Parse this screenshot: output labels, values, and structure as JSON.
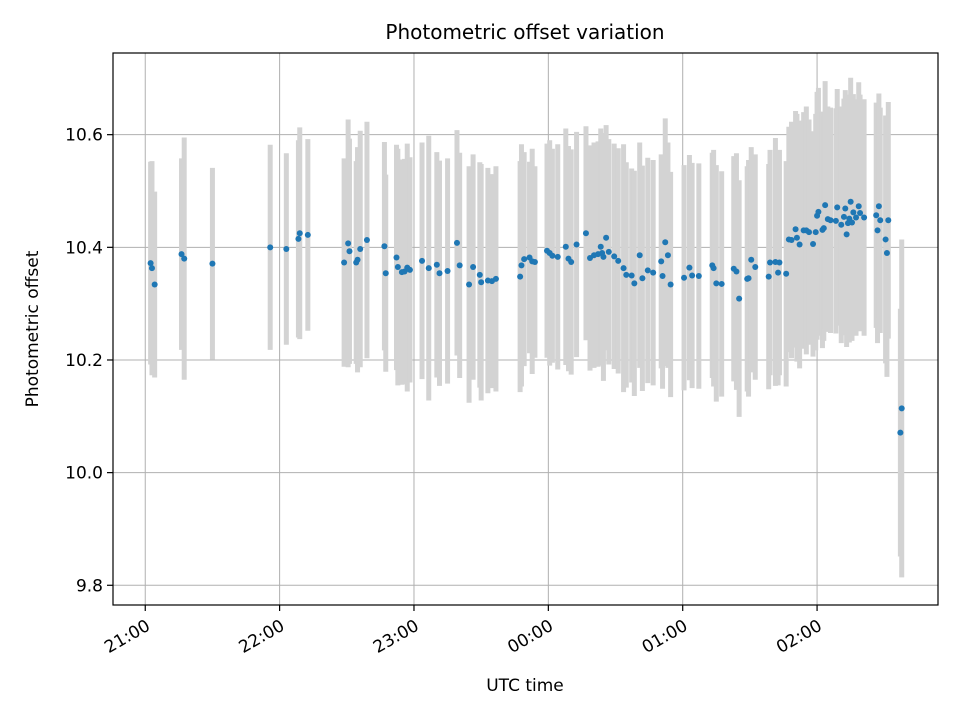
{
  "chart_data": {
    "type": "scatter",
    "title": "Photometric offset variation",
    "xlabel": "UTC time",
    "ylabel": "Photometric offset",
    "x_unit": "hours since 21:00 UTC",
    "xlim": [
      -0.24,
      5.9
    ],
    "ylim": [
      9.765,
      10.745
    ],
    "grid": true,
    "x_ticks": [
      {
        "value": 0,
        "label": "21:00"
      },
      {
        "value": 1,
        "label": "22:00"
      },
      {
        "value": 2,
        "label": "23:00"
      },
      {
        "value": 3,
        "label": "00:00"
      },
      {
        "value": 4,
        "label": "01:00"
      },
      {
        "value": 5,
        "label": "02:00"
      }
    ],
    "y_ticks": [
      {
        "value": 9.8,
        "label": "9.8"
      },
      {
        "value": 10.0,
        "label": "10.0"
      },
      {
        "value": 10.2,
        "label": "10.2"
      },
      {
        "value": 10.4,
        "label": "10.4"
      },
      {
        "value": 10.6,
        "label": "10.6"
      }
    ],
    "colors": {
      "point": "#1f77b4",
      "errorbar": "#d3d3d3",
      "grid": "#b0b0b0"
    },
    "series": [
      {
        "name": "Photometric offset",
        "points": [
          {
            "x": 0.04,
            "y": 10.372,
            "err": 0.18
          },
          {
            "x": 0.05,
            "y": 10.363,
            "err": 0.19
          },
          {
            "x": 0.07,
            "y": 10.334,
            "err": 0.165
          },
          {
            "x": 0.27,
            "y": 10.388,
            "err": 0.17
          },
          {
            "x": 0.29,
            "y": 10.38,
            "err": 0.215
          },
          {
            "x": 0.5,
            "y": 10.371,
            "err": 0.17
          },
          {
            "x": 0.93,
            "y": 10.4,
            "err": 0.182
          },
          {
            "x": 1.05,
            "y": 10.397,
            "err": 0.17
          },
          {
            "x": 1.14,
            "y": 10.415,
            "err": 0.175
          },
          {
            "x": 1.15,
            "y": 10.425,
            "err": 0.188
          },
          {
            "x": 1.21,
            "y": 10.422,
            "err": 0.17
          },
          {
            "x": 1.48,
            "y": 10.373,
            "err": 0.185
          },
          {
            "x": 1.51,
            "y": 10.407,
            "err": 0.22
          },
          {
            "x": 1.52,
            "y": 10.393,
            "err": 0.2
          },
          {
            "x": 1.57,
            "y": 10.373,
            "err": 0.18
          },
          {
            "x": 1.58,
            "y": 10.378,
            "err": 0.2
          },
          {
            "x": 1.6,
            "y": 10.397,
            "err": 0.21
          },
          {
            "x": 1.65,
            "y": 10.413,
            "err": 0.21
          },
          {
            "x": 1.78,
            "y": 10.402,
            "err": 0.185
          },
          {
            "x": 1.79,
            "y": 10.354,
            "err": 0.175
          },
          {
            "x": 1.87,
            "y": 10.382,
            "err": 0.2
          },
          {
            "x": 1.88,
            "y": 10.365,
            "err": 0.21
          },
          {
            "x": 1.91,
            "y": 10.356,
            "err": 0.2
          },
          {
            "x": 1.93,
            "y": 10.357,
            "err": 0.2
          },
          {
            "x": 1.95,
            "y": 10.364,
            "err": 0.22
          },
          {
            "x": 1.97,
            "y": 10.36,
            "err": 0.2
          },
          {
            "x": 2.06,
            "y": 10.376,
            "err": 0.21
          },
          {
            "x": 2.11,
            "y": 10.363,
            "err": 0.235
          },
          {
            "x": 2.17,
            "y": 10.369,
            "err": 0.2
          },
          {
            "x": 2.19,
            "y": 10.354,
            "err": 0.2
          },
          {
            "x": 2.25,
            "y": 10.358,
            "err": 0.2
          },
          {
            "x": 2.32,
            "y": 10.408,
            "err": 0.2
          },
          {
            "x": 2.34,
            "y": 10.368,
            "err": 0.2
          },
          {
            "x": 2.41,
            "y": 10.334,
            "err": 0.21
          },
          {
            "x": 2.44,
            "y": 10.365,
            "err": 0.2
          },
          {
            "x": 2.49,
            "y": 10.351,
            "err": 0.2
          },
          {
            "x": 2.5,
            "y": 10.338,
            "err": 0.21
          },
          {
            "x": 2.55,
            "y": 10.341,
            "err": 0.2
          },
          {
            "x": 2.58,
            "y": 10.34,
            "err": 0.19
          },
          {
            "x": 2.61,
            "y": 10.344,
            "err": 0.2
          },
          {
            "x": 2.79,
            "y": 10.348,
            "err": 0.205
          },
          {
            "x": 2.8,
            "y": 10.368,
            "err": 0.215
          },
          {
            "x": 2.82,
            "y": 10.379,
            "err": 0.19
          },
          {
            "x": 2.86,
            "y": 10.382,
            "err": 0.17
          },
          {
            "x": 2.88,
            "y": 10.375,
            "err": 0.2
          },
          {
            "x": 2.9,
            "y": 10.374,
            "err": 0.17
          },
          {
            "x": 2.99,
            "y": 10.394,
            "err": 0.19
          },
          {
            "x": 3.01,
            "y": 10.39,
            "err": 0.2
          },
          {
            "x": 3.03,
            "y": 10.385,
            "err": 0.19
          },
          {
            "x": 3.07,
            "y": 10.383,
            "err": 0.2
          },
          {
            "x": 3.13,
            "y": 10.401,
            "err": 0.21
          },
          {
            "x": 3.15,
            "y": 10.38,
            "err": 0.2
          },
          {
            "x": 3.17,
            "y": 10.374,
            "err": 0.2
          },
          {
            "x": 3.21,
            "y": 10.405,
            "err": 0.2
          },
          {
            "x": 3.28,
            "y": 10.425,
            "err": 0.19
          },
          {
            "x": 3.31,
            "y": 10.381,
            "err": 0.2
          },
          {
            "x": 3.34,
            "y": 10.386,
            "err": 0.2
          },
          {
            "x": 3.37,
            "y": 10.388,
            "err": 0.2
          },
          {
            "x": 3.39,
            "y": 10.401,
            "err": 0.21
          },
          {
            "x": 3.4,
            "y": 10.39,
            "err": 0.2
          },
          {
            "x": 3.41,
            "y": 10.383,
            "err": 0.22
          },
          {
            "x": 3.43,
            "y": 10.417,
            "err": 0.2
          },
          {
            "x": 3.45,
            "y": 10.392,
            "err": 0.2
          },
          {
            "x": 3.49,
            "y": 10.384,
            "err": 0.2
          },
          {
            "x": 3.52,
            "y": 10.376,
            "err": 0.2
          },
          {
            "x": 3.56,
            "y": 10.363,
            "err": 0.22
          },
          {
            "x": 3.58,
            "y": 10.351,
            "err": 0.2
          },
          {
            "x": 3.62,
            "y": 10.35,
            "err": 0.19
          },
          {
            "x": 3.64,
            "y": 10.336,
            "err": 0.2
          },
          {
            "x": 3.68,
            "y": 10.386,
            "err": 0.2
          },
          {
            "x": 3.7,
            "y": 10.345,
            "err": 0.2
          },
          {
            "x": 3.74,
            "y": 10.359,
            "err": 0.2
          },
          {
            "x": 3.78,
            "y": 10.355,
            "err": 0.2
          },
          {
            "x": 3.84,
            "y": 10.375,
            "err": 0.19
          },
          {
            "x": 3.85,
            "y": 10.349,
            "err": 0.2
          },
          {
            "x": 3.87,
            "y": 10.409,
            "err": 0.22
          },
          {
            "x": 3.89,
            "y": 10.386,
            "err": 0.2
          },
          {
            "x": 3.91,
            "y": 10.334,
            "err": 0.2
          },
          {
            "x": 4.01,
            "y": 10.346,
            "err": 0.2
          },
          {
            "x": 4.05,
            "y": 10.364,
            "err": 0.2
          },
          {
            "x": 4.07,
            "y": 10.35,
            "err": 0.2
          },
          {
            "x": 4.12,
            "y": 10.349,
            "err": 0.2
          },
          {
            "x": 4.22,
            "y": 10.368,
            "err": 0.2
          },
          {
            "x": 4.23,
            "y": 10.363,
            "err": 0.21
          },
          {
            "x": 4.25,
            "y": 10.336,
            "err": 0.21
          },
          {
            "x": 4.29,
            "y": 10.335,
            "err": 0.2
          },
          {
            "x": 4.38,
            "y": 10.362,
            "err": 0.2
          },
          {
            "x": 4.4,
            "y": 10.357,
            "err": 0.21
          },
          {
            "x": 4.42,
            "y": 10.309,
            "err": 0.21
          },
          {
            "x": 4.48,
            "y": 10.344,
            "err": 0.2
          },
          {
            "x": 4.49,
            "y": 10.345,
            "err": 0.21
          },
          {
            "x": 4.51,
            "y": 10.378,
            "err": 0.2
          },
          {
            "x": 4.54,
            "y": 10.365,
            "err": 0.2
          },
          {
            "x": 4.64,
            "y": 10.348,
            "err": 0.2
          },
          {
            "x": 4.65,
            "y": 10.373,
            "err": 0.2
          },
          {
            "x": 4.69,
            "y": 10.374,
            "err": 0.22
          },
          {
            "x": 4.71,
            "y": 10.355,
            "err": 0.2
          },
          {
            "x": 4.72,
            "y": 10.373,
            "err": 0.2
          },
          {
            "x": 4.77,
            "y": 10.353,
            "err": 0.2
          },
          {
            "x": 4.79,
            "y": 10.414,
            "err": 0.2
          },
          {
            "x": 4.81,
            "y": 10.413,
            "err": 0.21
          },
          {
            "x": 4.84,
            "y": 10.432,
            "err": 0.21
          },
          {
            "x": 4.85,
            "y": 10.417,
            "err": 0.22
          },
          {
            "x": 4.87,
            "y": 10.405,
            "err": 0.22
          },
          {
            "x": 4.9,
            "y": 10.43,
            "err": 0.21
          },
          {
            "x": 4.92,
            "y": 10.43,
            "err": 0.22
          },
          {
            "x": 4.94,
            "y": 10.427,
            "err": 0.2
          },
          {
            "x": 4.97,
            "y": 10.406,
            "err": 0.2
          },
          {
            "x": 4.99,
            "y": 10.427,
            "err": 0.21
          },
          {
            "x": 5.0,
            "y": 10.456,
            "err": 0.22
          },
          {
            "x": 5.01,
            "y": 10.463,
            "err": 0.22
          },
          {
            "x": 5.04,
            "y": 10.431,
            "err": 0.21
          },
          {
            "x": 5.05,
            "y": 10.434,
            "err": 0.2
          },
          {
            "x": 5.06,
            "y": 10.475,
            "err": 0.22
          },
          {
            "x": 5.08,
            "y": 10.45,
            "err": 0.2
          },
          {
            "x": 5.1,
            "y": 10.448,
            "err": 0.2
          },
          {
            "x": 5.14,
            "y": 10.447,
            "err": 0.2
          },
          {
            "x": 5.15,
            "y": 10.471,
            "err": 0.21
          },
          {
            "x": 5.18,
            "y": 10.44,
            "err": 0.21
          },
          {
            "x": 5.2,
            "y": 10.454,
            "err": 0.21
          },
          {
            "x": 5.21,
            "y": 10.469,
            "err": 0.21
          },
          {
            "x": 5.22,
            "y": 10.423,
            "err": 0.2
          },
          {
            "x": 5.23,
            "y": 10.443,
            "err": 0.21
          },
          {
            "x": 5.24,
            "y": 10.451,
            "err": 0.22
          },
          {
            "x": 5.25,
            "y": 10.481,
            "err": 0.22
          },
          {
            "x": 5.26,
            "y": 10.444,
            "err": 0.21
          },
          {
            "x": 5.27,
            "y": 10.462,
            "err": 0.21
          },
          {
            "x": 5.29,
            "y": 10.453,
            "err": 0.21
          },
          {
            "x": 5.31,
            "y": 10.473,
            "err": 0.22
          },
          {
            "x": 5.32,
            "y": 10.461,
            "err": 0.21
          },
          {
            "x": 5.35,
            "y": 10.453,
            "err": 0.21
          },
          {
            "x": 5.44,
            "y": 10.457,
            "err": 0.2
          },
          {
            "x": 5.45,
            "y": 10.43,
            "err": 0.2
          },
          {
            "x": 5.46,
            "y": 10.473,
            "err": 0.2
          },
          {
            "x": 5.47,
            "y": 10.448,
            "err": 0.2
          },
          {
            "x": 5.51,
            "y": 10.414,
            "err": 0.22
          },
          {
            "x": 5.52,
            "y": 10.39,
            "err": 0.22
          },
          {
            "x": 5.53,
            "y": 10.448,
            "err": 0.21
          },
          {
            "x": 5.62,
            "y": 10.071,
            "err": 0.22
          },
          {
            "x": 5.63,
            "y": 10.114,
            "err": 0.3
          }
        ]
      }
    ]
  }
}
